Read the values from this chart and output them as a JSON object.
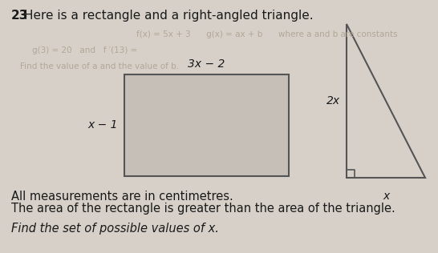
{
  "title_number": "23",
  "title_text": "Here is a rectangle and a right-angled triangle.",
  "rect_label_top": "3x − 2",
  "rect_label_left": "x − 1",
  "tri_label_left": "2x",
  "tri_label_bottom": "x",
  "body_line1": "All measurements are in centimetres.",
  "body_line2": "The area of the rectangle is greater than the area of the triangle.",
  "body_line3": "Find the set of possible values of x.",
  "bg_color": "#d6d0c8",
  "rect_fill": "#c5bfb7",
  "text_color": "#1a1a1a",
  "faded_color": "#b0a898",
  "title_fontsize": 11,
  "label_fontsize": 10,
  "body_fontsize": 10.5,
  "faded_fontsize": 7.5
}
